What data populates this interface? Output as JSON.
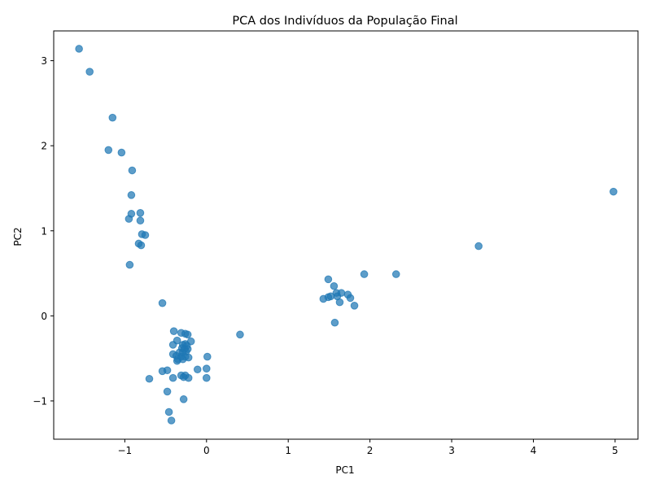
{
  "chart_data": {
    "type": "scatter",
    "title": "PCA dos Indivíduos da População Final",
    "xlabel": "PC1",
    "ylabel": "PC2",
    "xlim": [
      -1.87,
      5.28
    ],
    "ylim": [
      -1.45,
      3.35
    ],
    "xticks": [
      -1,
      0,
      1,
      2,
      3,
      4,
      5
    ],
    "yticks": [
      -1,
      0,
      1,
      2,
      3
    ],
    "grid": false,
    "legend": "none",
    "marker_color": "#1f77b4",
    "series": [
      {
        "points": [
          [
            -1.56,
            3.14
          ],
          [
            -1.43,
            2.87
          ],
          [
            -1.15,
            2.33
          ],
          [
            -1.2,
            1.95
          ],
          [
            -1.04,
            1.92
          ],
          [
            -0.91,
            1.71
          ],
          [
            -0.92,
            1.42
          ],
          [
            -0.92,
            1.2
          ],
          [
            -0.95,
            1.14
          ],
          [
            -0.81,
            1.21
          ],
          [
            -0.81,
            1.12
          ],
          [
            -0.79,
            0.96
          ],
          [
            -0.75,
            0.95
          ],
          [
            -0.83,
            0.85
          ],
          [
            -0.8,
            0.83
          ],
          [
            -0.94,
            0.6
          ],
          [
            -0.54,
            0.15
          ],
          [
            1.93,
            0.49
          ],
          [
            2.32,
            0.49
          ],
          [
            1.49,
            0.43
          ],
          [
            1.56,
            0.35
          ],
          [
            1.59,
            0.27
          ],
          [
            1.65,
            0.27
          ],
          [
            1.73,
            0.25
          ],
          [
            1.49,
            0.22
          ],
          [
            1.52,
            0.23
          ],
          [
            1.6,
            0.23
          ],
          [
            1.43,
            0.2
          ],
          [
            1.76,
            0.21
          ],
          [
            1.63,
            0.16
          ],
          [
            1.81,
            0.12
          ],
          [
            1.57,
            -0.08
          ],
          [
            3.33,
            0.82
          ],
          [
            4.98,
            1.46
          ],
          [
            0.41,
            -0.22
          ],
          [
            -0.4,
            -0.18
          ],
          [
            -0.31,
            -0.2
          ],
          [
            -0.26,
            -0.21
          ],
          [
            -0.23,
            -0.22
          ],
          [
            -0.36,
            -0.29
          ],
          [
            -0.19,
            -0.3
          ],
          [
            -0.41,
            -0.34
          ],
          [
            -0.29,
            -0.34
          ],
          [
            -0.26,
            -0.33
          ],
          [
            -0.24,
            -0.35
          ],
          [
            -0.3,
            -0.38
          ],
          [
            -0.27,
            -0.39
          ],
          [
            -0.23,
            -0.39
          ],
          [
            -0.33,
            -0.43
          ],
          [
            -0.29,
            -0.43
          ],
          [
            -0.25,
            -0.42
          ],
          [
            -0.41,
            -0.45
          ],
          [
            -0.37,
            -0.47
          ],
          [
            -0.31,
            -0.48
          ],
          [
            -0.26,
            -0.48
          ],
          [
            -0.22,
            -0.49
          ],
          [
            0.01,
            -0.48
          ],
          [
            -0.35,
            -0.51
          ],
          [
            -0.29,
            -0.51
          ],
          [
            -0.36,
            -0.53
          ],
          [
            -0.11,
            -0.63
          ],
          [
            0.0,
            -0.62
          ],
          [
            -0.48,
            -0.64
          ],
          [
            -0.54,
            -0.65
          ],
          [
            -0.31,
            -0.7
          ],
          [
            -0.26,
            -0.7
          ],
          [
            -0.41,
            -0.73
          ],
          [
            -0.28,
            -0.72
          ],
          [
            -0.22,
            -0.73
          ],
          [
            0.0,
            -0.73
          ],
          [
            -0.7,
            -0.74
          ],
          [
            -0.48,
            -0.89
          ],
          [
            -0.28,
            -0.98
          ],
          [
            -0.46,
            -1.13
          ],
          [
            -0.43,
            -1.23
          ]
        ]
      }
    ]
  }
}
